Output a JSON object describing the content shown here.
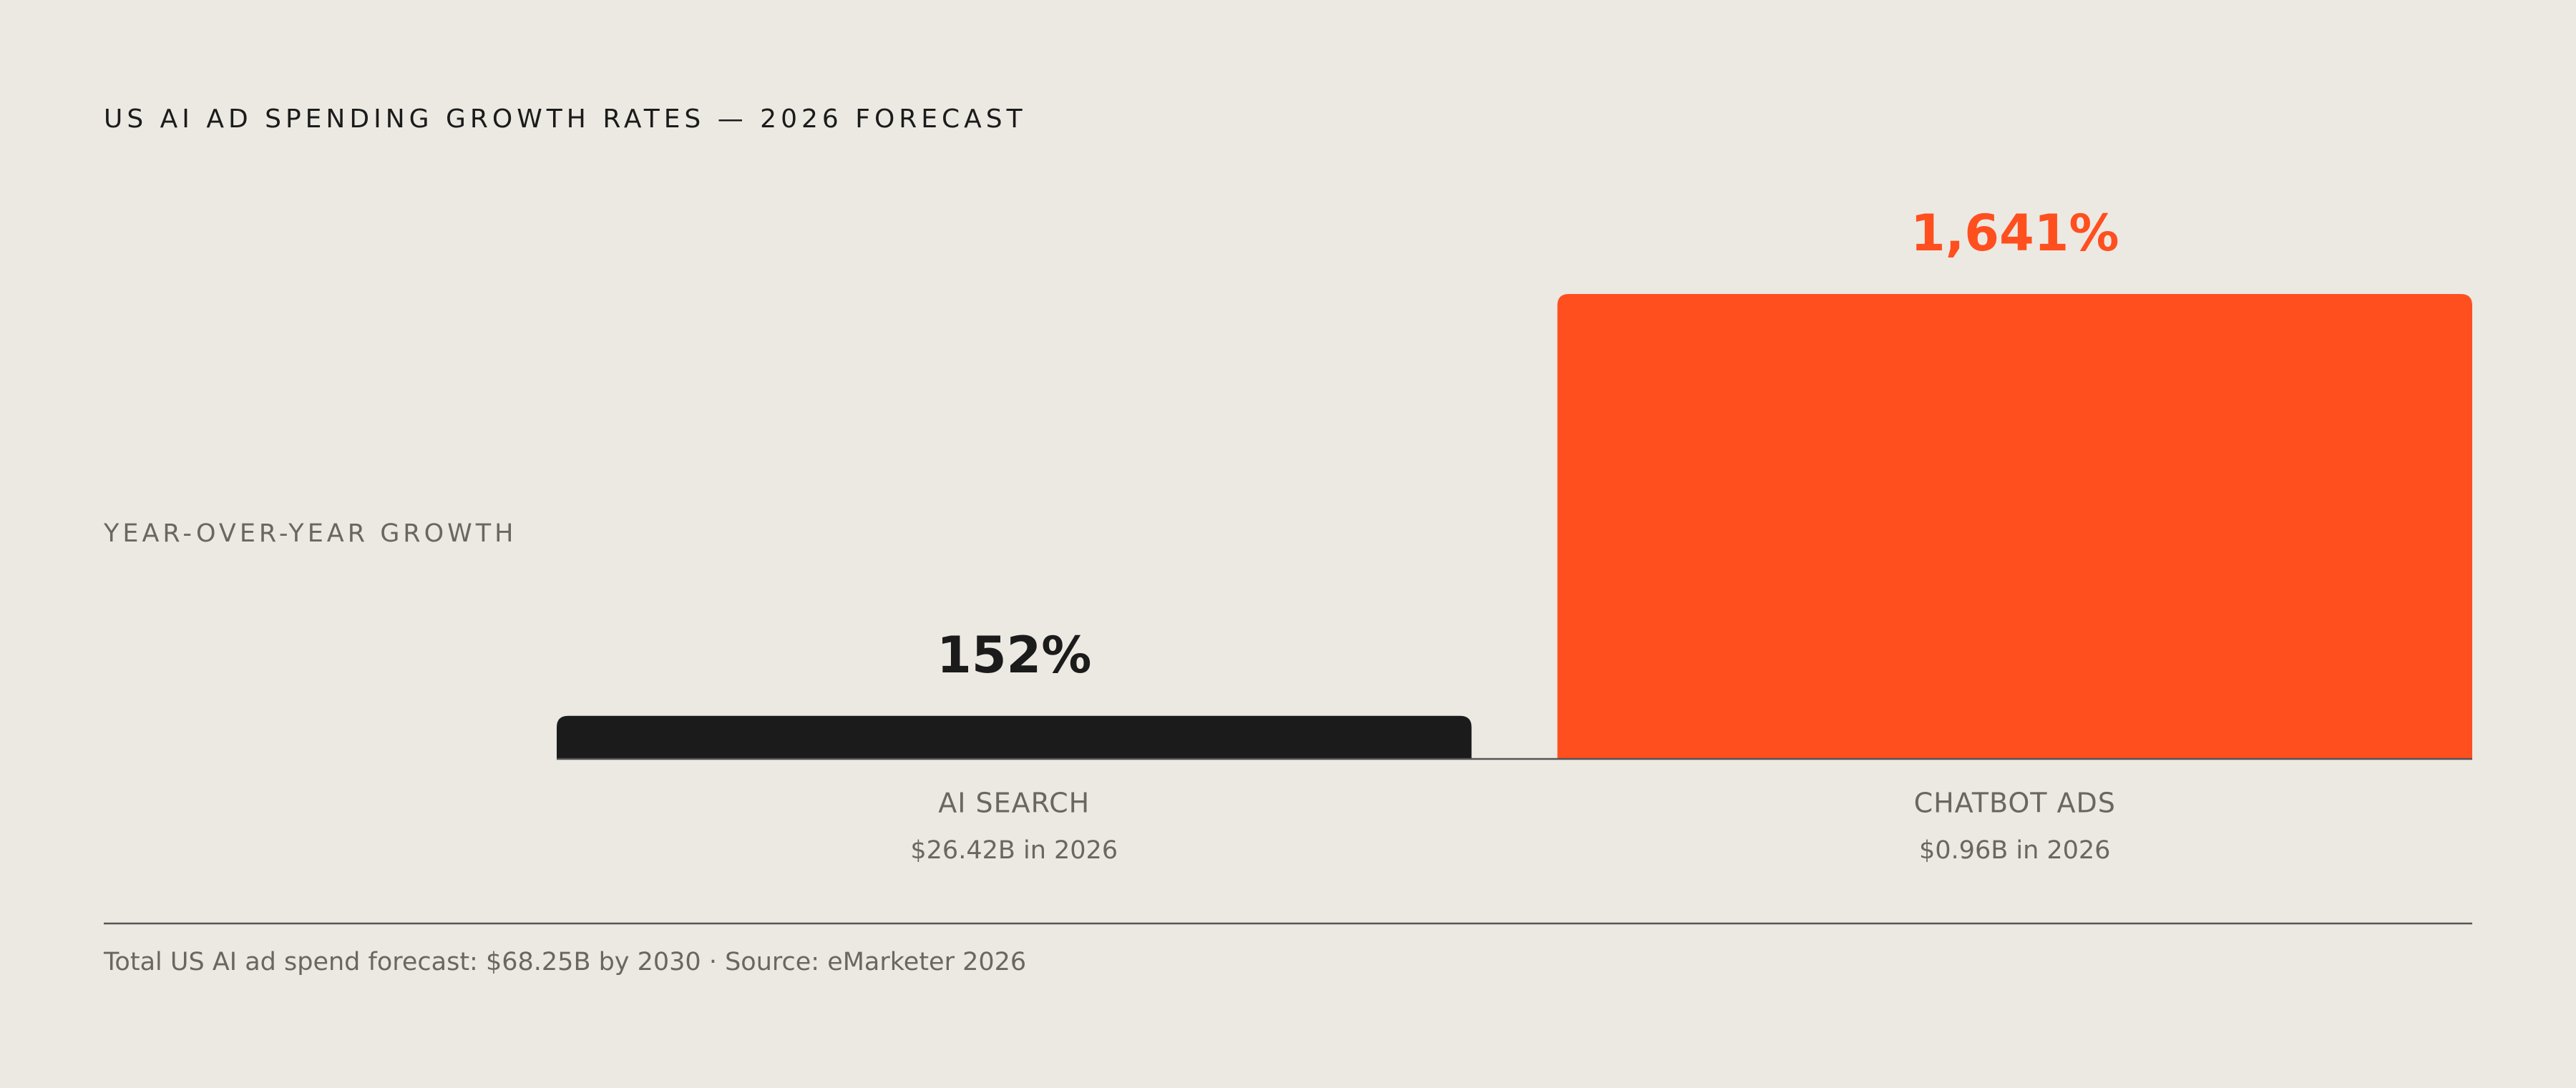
{
  "chart_data": {
    "type": "bar",
    "title": "US AI AD SPENDING GROWTH RATES — 2026 FORECAST",
    "y_label": "YEAR-OVER-YEAR GROWTH",
    "categories": [
      "AI SEARCH",
      "CHATBOT ADS"
    ],
    "category_notes": [
      "$26.42B in 2026",
      "$0.96B in 2026"
    ],
    "values": [
      152,
      1641
    ],
    "value_labels": [
      "152%",
      "1,641%"
    ],
    "colors": [
      "#1b1b1b",
      "#ff4f1f"
    ],
    "ylim": [
      0,
      1641
    ],
    "footer": "Total US AI ad spend forecast: $68.25B by 2030  ·  Source: eMarketer 2026"
  }
}
